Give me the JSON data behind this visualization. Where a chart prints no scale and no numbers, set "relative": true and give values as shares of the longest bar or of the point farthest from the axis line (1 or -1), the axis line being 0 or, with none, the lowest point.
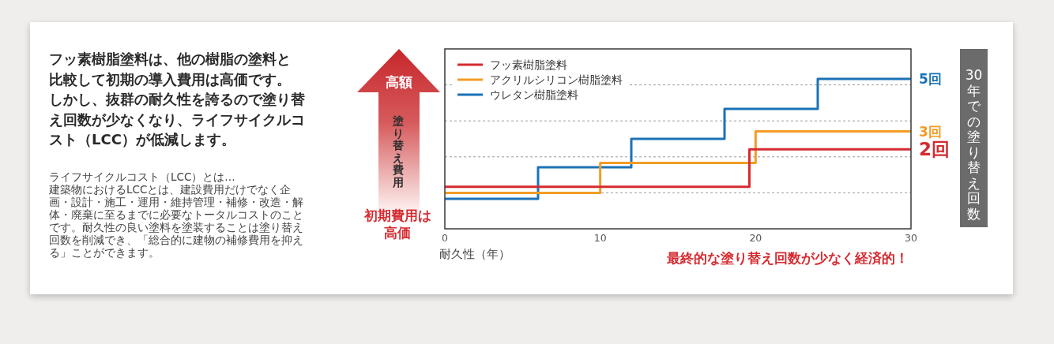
{
  "chart_data": {
    "type": "step",
    "title": "フッ素樹脂塗料は、他の樹脂の塗料と比較して初期の導入費用は高価です。",
    "subtitle": "しかし、抜群の耐久性を誇るので塗り替え回数が少なくなり、ライフサイクルコスト（LCC）が低減します。",
    "xlabel": "耐久性（年）",
    "ylabel": "塗り替え費用",
    "y2label": "30年での塗り替え回数",
    "annotations": [
      "高額",
      "初期費用は高価",
      "ライフサイクルコスト（LCC）とは…",
      "建築物におけるLCCとは、建設費用だけでなく企画・設計・施工・運用・維持管理・補修・改造・解体・廃棄に至るまでに必要なトータルコストのことです。耐久性の良い塗料を塗装することは塗り替え回数を削減でき、「総合的に建物の補修費用を抑える」ことができます。",
      "最終的な塗り替え回数が少なく経済的！",
      "2回",
      "3回",
      "5回"
    ],
    "relative": true,
    "xlim": [
      0,
      30
    ],
    "xticks": [
      0,
      10,
      20,
      30
    ],
    "grid": "y",
    "legend": "top left",
    "series": [
      {
        "name": "フッ素樹脂塗料",
        "color": "#d52b30",
        "x": [
          0,
          19.6,
          30
        ],
        "values": [
          0.28,
          0.53,
          0.53
        ]
      },
      {
        "name": "アクリルシリコン樹脂塗料",
        "color": "#f39c26",
        "x": [
          0,
          10,
          20,
          30
        ],
        "values": [
          0.24,
          0.44,
          0.65,
          0.65
        ]
      },
      {
        "name": "ウレタン樹脂塗料",
        "color": "#1b73b6",
        "x": [
          0,
          6,
          12,
          18,
          24,
          30
        ],
        "values": [
          0.2,
          0.41,
          0.6,
          0.8,
          1,
          1
        ]
      }
    ]
  }
}
